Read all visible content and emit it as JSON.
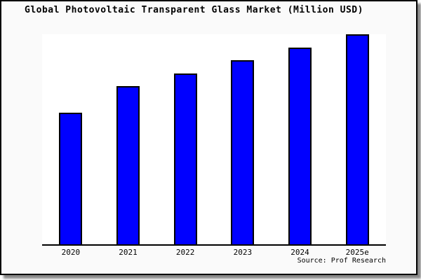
{
  "window": {
    "background": "#FFFFFF"
  },
  "figure": {
    "background": "#FAFAFA",
    "border_color": "#000000",
    "plot_background": "#FFFFFF",
    "shadow_color": "#707070"
  },
  "chart_data": {
    "type": "bar",
    "title": "Global Photovoltaic Transparent Glass Market (Million USD)",
    "xlabel": "",
    "ylabel": "",
    "categories": [
      "2020",
      "2021",
      "2022",
      "2023",
      "2024",
      "2025e"
    ],
    "values": [
      62.8,
      75.2,
      81.5,
      87.8,
      93.8,
      100
    ],
    "ylim": [
      0,
      100
    ],
    "values_note": "y-axis has no ticks, labels or gridlines in the image; values are a relative index read from bar pixel heights with 2025e = 100",
    "grid": false,
    "legend": false,
    "bar_color": "#0000FF",
    "bar_border_color": "#000000"
  },
  "source": {
    "text": "Source: Prof Research"
  }
}
